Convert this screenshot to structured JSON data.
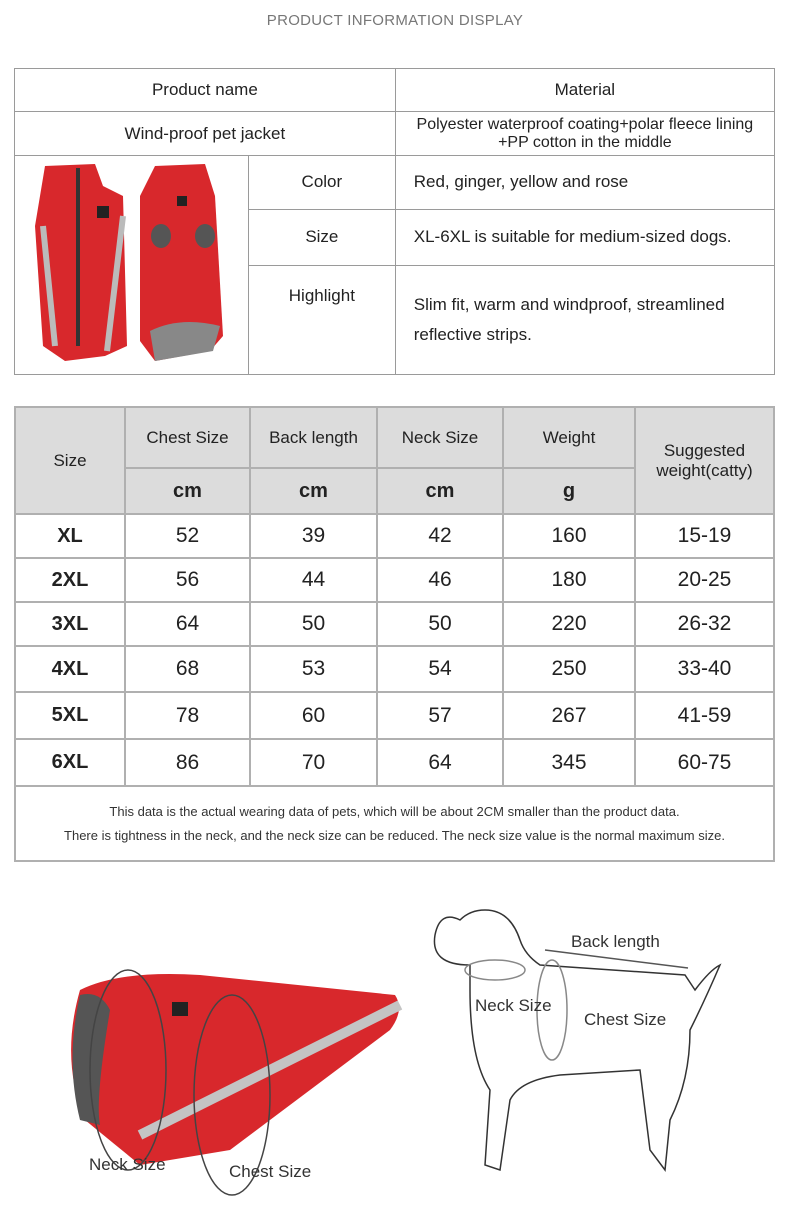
{
  "title": "PRODUCT INFORMATION DISPLAY",
  "info": {
    "name_header": "Product name",
    "material_header": "Material",
    "name": "Wind-proof pet jacket",
    "material": "Polyester waterproof coating+polar fleece lining +PP cotton in the middle",
    "rows": [
      {
        "label": "Color",
        "value": "Red, ginger, yellow and rose"
      },
      {
        "label": "Size",
        "value": "XL-6XL is suitable for medium-sized dogs."
      },
      {
        "label": "Highlight",
        "value": "Slim fit, warm and windproof, streamlined reflective strips."
      }
    ]
  },
  "size_table": {
    "headers": [
      "Size",
      "Chest Size",
      "Back length",
      "Neck Size",
      "Weight",
      "Suggested weight(catty)"
    ],
    "units": [
      "cm",
      "cm",
      "cm",
      "g"
    ],
    "rows": [
      [
        "XL",
        "52",
        "39",
        "42",
        "160",
        "15-19"
      ],
      [
        "2XL",
        "56",
        "44",
        "46",
        "180",
        "20-25"
      ],
      [
        "3XL",
        "64",
        "50",
        "50",
        "220",
        "26-32"
      ],
      [
        "4XL",
        "68",
        "53",
        "54",
        "250",
        "33-40"
      ],
      [
        "5XL",
        "78",
        "60",
        "57",
        "267",
        "41-59"
      ],
      [
        "6XL",
        "86",
        "70",
        "64",
        "345",
        "60-75"
      ]
    ],
    "note1": "This data is the actual wearing data of pets, which will be about 2CM smaller than the product data.",
    "note2": "There is tightness in the neck, and the neck size can be reduced. The neck size value is the normal maximum size."
  },
  "diagram": {
    "neck_size": "Neck Size",
    "chest_size": "Chest Size",
    "back_length": "Back length"
  },
  "colors": {
    "jacket": "#d8282c",
    "reflective": "#b8b8b8",
    "border": "#9a9a9a"
  }
}
